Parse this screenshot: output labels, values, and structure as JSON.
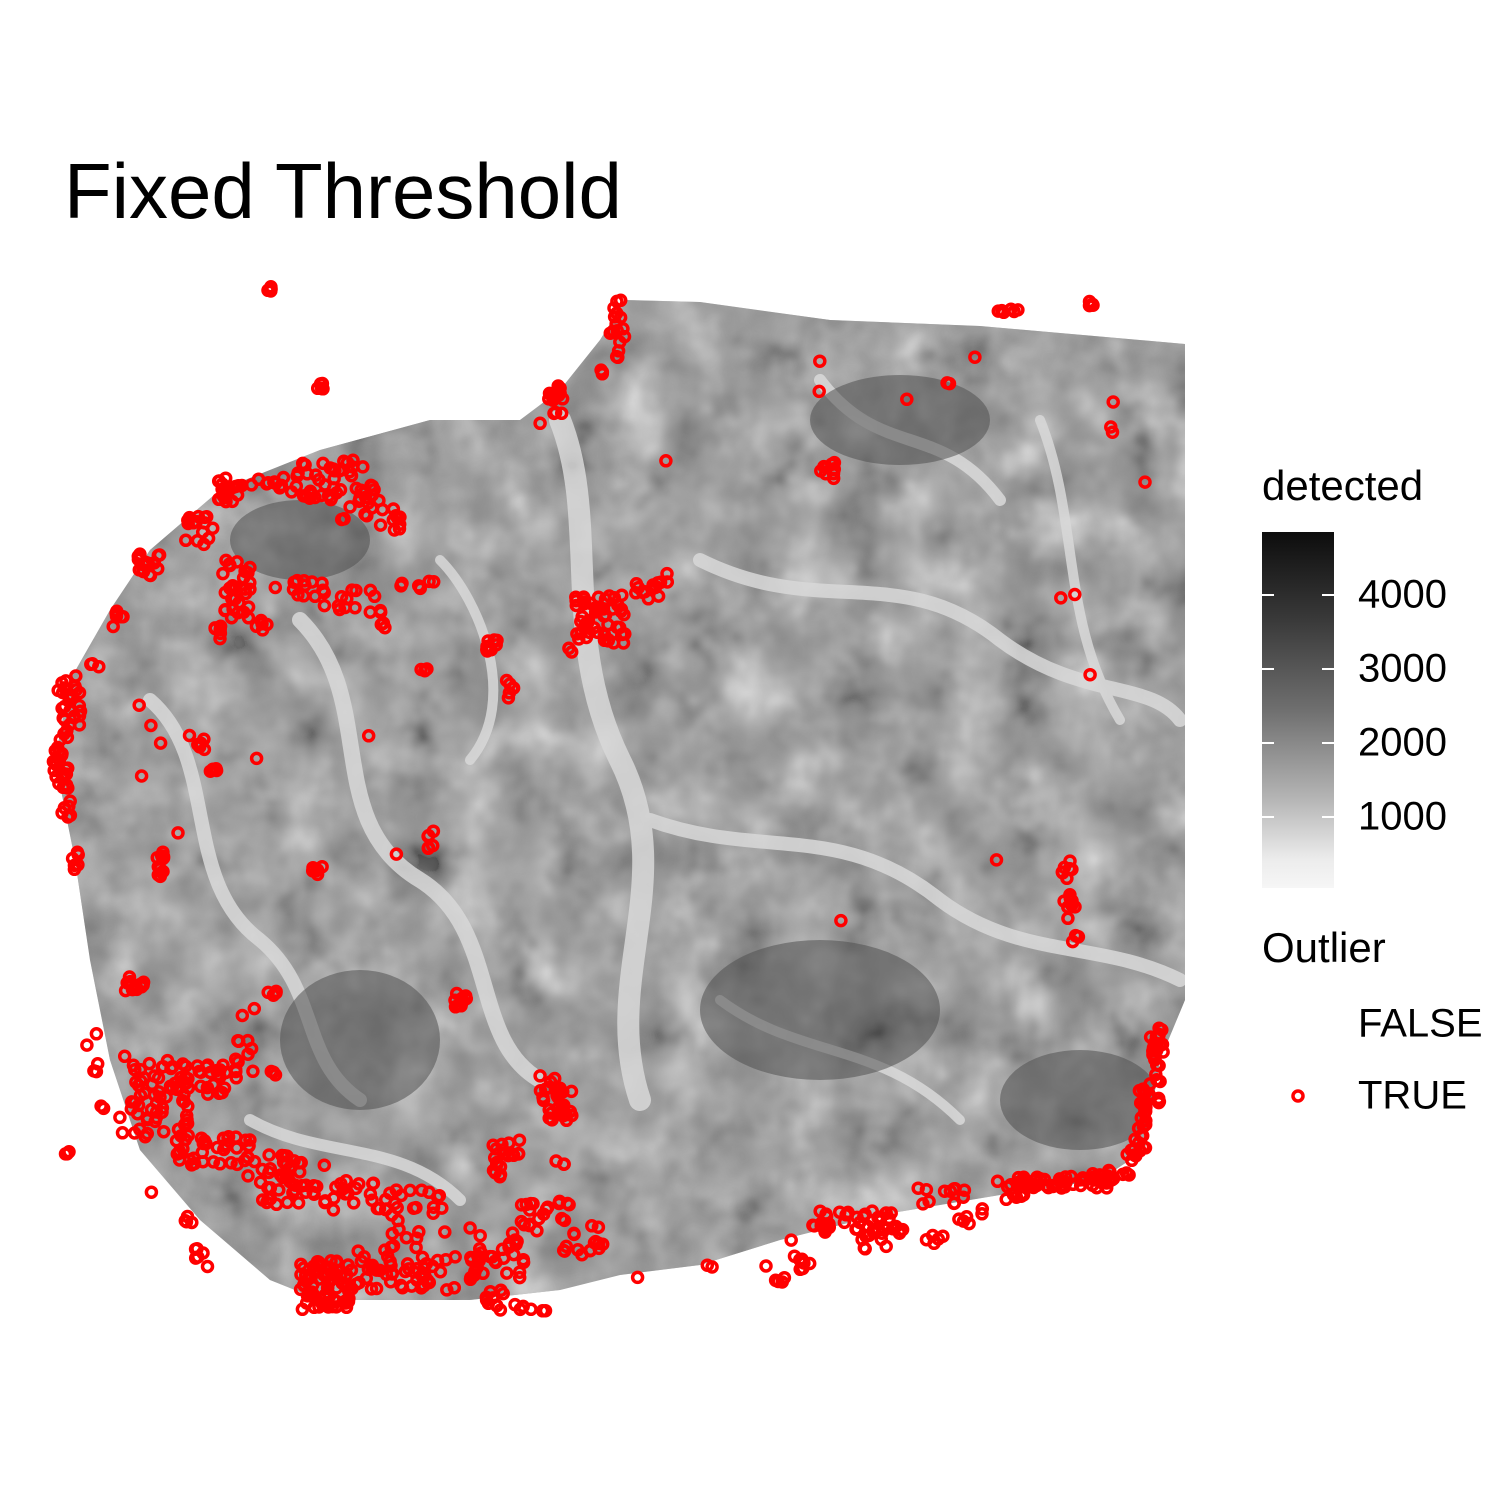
{
  "chart_data": {
    "type": "scatter",
    "title": "Fixed Threshold",
    "xlabel": "",
    "ylabel": "",
    "grid": false,
    "legend_position": "right",
    "color_legend": {
      "title": "detected",
      "ticks": [
        "4000",
        "3000",
        "2000",
        "1000"
      ],
      "low_color": "#f6f6f6",
      "high_color": "#0d0d0d"
    },
    "outlier_legend": {
      "title": "Outlier",
      "entries": [
        {
          "label": "FALSE",
          "marker": "none"
        },
        {
          "label": "TRUE",
          "marker": "open-circle",
          "color": "#ff0000"
        }
      ]
    }
  }
}
